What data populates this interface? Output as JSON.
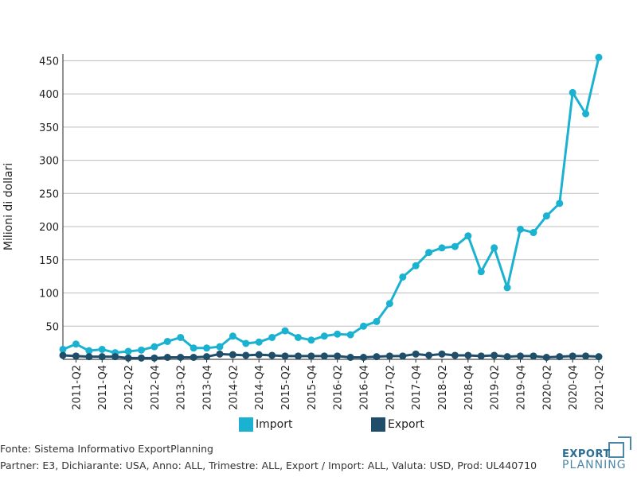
{
  "chart_data": {
    "type": "line",
    "ylabel": "Milioni di dollari",
    "ylim": [
      0,
      460
    ],
    "yticks": [
      50,
      100,
      150,
      200,
      250,
      300,
      350,
      400,
      450
    ],
    "grid": true,
    "legend_position": "bottom-center",
    "xtick_labels": [
      "2011-Q2",
      "2011-Q4",
      "2012-Q2",
      "2012-Q4",
      "2013-Q2",
      "2013-Q4",
      "2014-Q2",
      "2014-Q4",
      "2015-Q2",
      "2015-Q4",
      "2016-Q2",
      "2016-Q4",
      "2017-Q2",
      "2017-Q4",
      "2018-Q2",
      "2018-Q4",
      "2019-Q2",
      "2019-Q4",
      "2020-Q2",
      "2020-Q4",
      "2021-Q2"
    ],
    "x": [
      "2011-Q1",
      "2011-Q2",
      "2011-Q3",
      "2011-Q4",
      "2012-Q1",
      "2012-Q2",
      "2012-Q3",
      "2012-Q4",
      "2013-Q1",
      "2013-Q2",
      "2013-Q3",
      "2013-Q4",
      "2014-Q1",
      "2014-Q2",
      "2014-Q3",
      "2014-Q4",
      "2015-Q1",
      "2015-Q2",
      "2015-Q3",
      "2015-Q4",
      "2016-Q1",
      "2016-Q2",
      "2016-Q3",
      "2016-Q4",
      "2017-Q1",
      "2017-Q2",
      "2017-Q3",
      "2017-Q4",
      "2018-Q1",
      "2018-Q2",
      "2018-Q3",
      "2018-Q4",
      "2019-Q1",
      "2019-Q2",
      "2019-Q3",
      "2019-Q4",
      "2020-Q1",
      "2020-Q2",
      "2020-Q3",
      "2020-Q4",
      "2021-Q1",
      "2021-Q2"
    ],
    "series": [
      {
        "name": "Import",
        "color": "#1bb2d1",
        "values": [
          15,
          23,
          13,
          15,
          10,
          12,
          14,
          19,
          27,
          33,
          17,
          17,
          19,
          35,
          24,
          26,
          33,
          43,
          33,
          29,
          35,
          38,
          37,
          50,
          57,
          84,
          124,
          141,
          161,
          168,
          170,
          186,
          132,
          168,
          108,
          196,
          191,
          216,
          235,
          402,
          370,
          455
        ]
      },
      {
        "name": "Export",
        "color": "#1f4e6a",
        "values": [
          6,
          5,
          4,
          4,
          4,
          2,
          2,
          2,
          3,
          3,
          3,
          4,
          8,
          7,
          6,
          7,
          6,
          5,
          5,
          5,
          5,
          5,
          3,
          3,
          4,
          5,
          5,
          8,
          6,
          8,
          6,
          6,
          5,
          6,
          4,
          5,
          5,
          3,
          4,
          5,
          5,
          4
        ]
      }
    ]
  },
  "footer": {
    "source": "Fonte: Sistema Informativo ExportPlanning",
    "details": "Partner: E3, Dichiarante: USA, Anno: ALL, Trimestre: ALL, Export / Import: ALL, Valuta: USD, Prod: UL440710"
  },
  "logo": {
    "line1": "EXPORT",
    "line2": "PLANNING"
  }
}
